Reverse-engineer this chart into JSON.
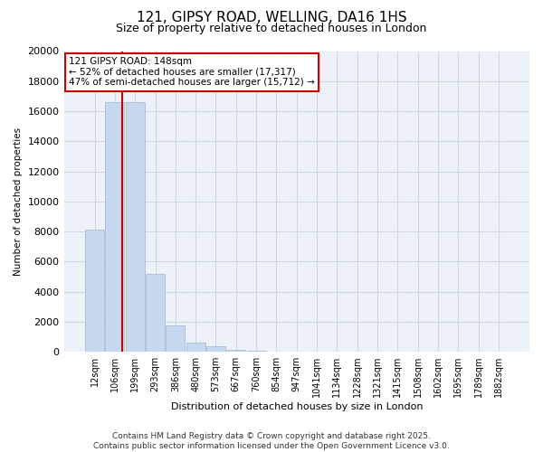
{
  "title": "121, GIPSY ROAD, WELLING, DA16 1HS",
  "subtitle": "Size of property relative to detached houses in London",
  "xlabel": "Distribution of detached houses by size in London",
  "ylabel": "Number of detached properties",
  "categories": [
    "12sqm",
    "106sqm",
    "199sqm",
    "293sqm",
    "386sqm",
    "480sqm",
    "573sqm",
    "667sqm",
    "760sqm",
    "854sqm",
    "947sqm",
    "1041sqm",
    "1134sqm",
    "1228sqm",
    "1321sqm",
    "1415sqm",
    "1508sqm",
    "1602sqm",
    "1695sqm",
    "1789sqm",
    "1882sqm"
  ],
  "values": [
    8100,
    16600,
    16600,
    5200,
    1750,
    600,
    350,
    150,
    70,
    30,
    10,
    0,
    0,
    0,
    0,
    0,
    0,
    0,
    0,
    0,
    0
  ],
  "bar_color": "#c5d8ed",
  "bar_edgecolor": "#aabdd8",
  "vline_x": 1.35,
  "vline_color": "#cc0000",
  "ylim": [
    0,
    20000
  ],
  "yticks": [
    0,
    2000,
    4000,
    6000,
    8000,
    10000,
    12000,
    14000,
    16000,
    18000,
    20000
  ],
  "annotation_text": "121 GIPSY ROAD: 148sqm\n← 52% of detached houses are smaller (17,317)\n47% of semi-detached houses are larger (15,712) →",
  "annotation_box_facecolor": "#ffffff",
  "annotation_box_edgecolor": "#cc0000",
  "grid_color": "#d0d8e4",
  "bg_color": "#edf2f8",
  "footer_line1": "Contains HM Land Registry data © Crown copyright and database right 2025.",
  "footer_line2": "Contains public sector information licensed under the Open Government Licence v3.0.",
  "title_fontsize": 11,
  "subtitle_fontsize": 9,
  "xlabel_fontsize": 8,
  "ylabel_fontsize": 7.5,
  "ytick_fontsize": 8,
  "xtick_fontsize": 7,
  "annot_fontsize": 7.5,
  "footer_fontsize": 6.5
}
